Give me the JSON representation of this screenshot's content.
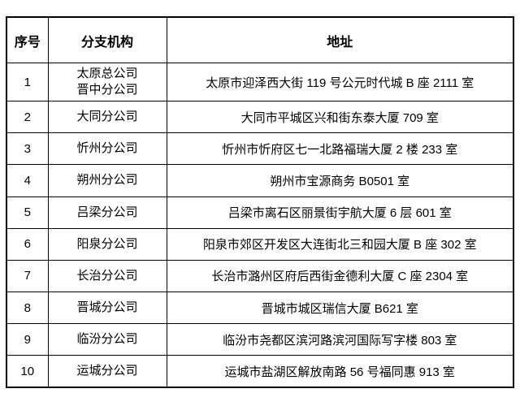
{
  "table": {
    "headers": {
      "num": "序号",
      "branch": "分支机构",
      "address": "地址"
    },
    "rows": [
      {
        "num": "1",
        "branch": "太原总公司\n晋中分公司",
        "address": "太原市迎泽西大街 119 号公元时代城 B 座 2111 室"
      },
      {
        "num": "2",
        "branch": "大同分公司",
        "address": "大同市平城区兴和街东泰大厦 709 室"
      },
      {
        "num": "3",
        "branch": "忻州分公司",
        "address": "忻州市忻府区七一北路福瑞大厦 2 楼 233 室"
      },
      {
        "num": "4",
        "branch": "朔州分公司",
        "address": "朔州市宝源商务 B0501 室"
      },
      {
        "num": "5",
        "branch": "吕梁分公司",
        "address": "吕梁市离石区丽景街宇航大厦 6 层 601 室"
      },
      {
        "num": "6",
        "branch": "阳泉分公司",
        "address": "阳泉市郊区开发区大连街北三和园大厦 B 座 302 室"
      },
      {
        "num": "7",
        "branch": "长治分公司",
        "address": "长治市潞州区府后西街金德利大厦 C 座 2304 室"
      },
      {
        "num": "8",
        "branch": "晋城分公司",
        "address": "晋城市城区瑞信大厦 B621 室"
      },
      {
        "num": "9",
        "branch": "临汾分公司",
        "address": "临汾市尧都区滨河路滨河国际写字楼 803 室"
      },
      {
        "num": "10",
        "branch": "运城分公司",
        "address": "运城市盐湖区解放南路 56 号福同惠 913 室"
      }
    ],
    "colors": {
      "border": "#000000",
      "text": "#000000",
      "background": "#ffffff"
    }
  }
}
